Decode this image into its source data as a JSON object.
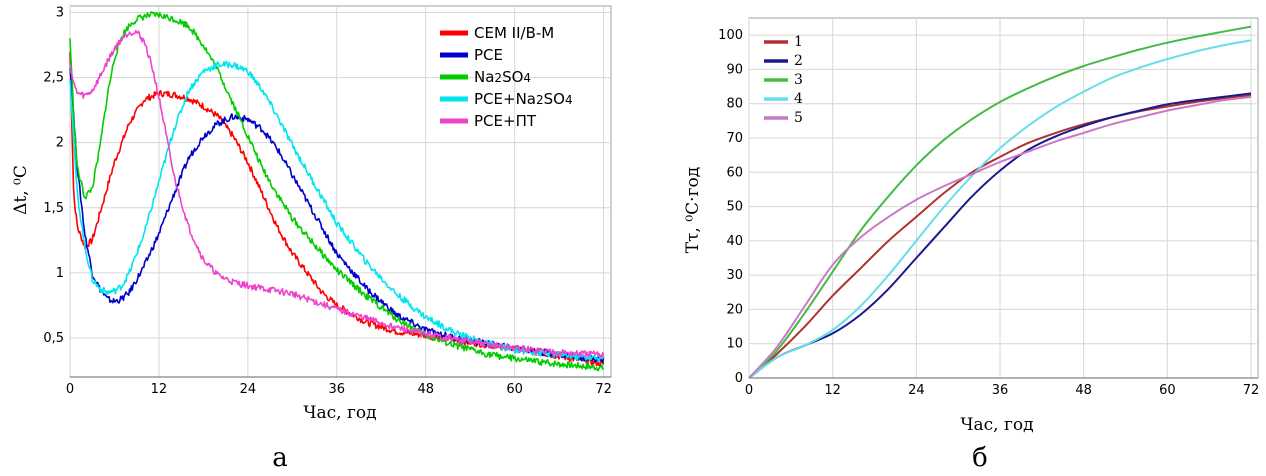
{
  "chart_data": [
    {
      "type": "line",
      "panel_label": "а",
      "xlabel": "Час, год",
      "ylabel": "Δt, ⁰С",
      "xlim": [
        0,
        73
      ],
      "ylim": [
        0.2,
        3.05
      ],
      "x_ticks": [
        0,
        12,
        24,
        36,
        48,
        60,
        72
      ],
      "y_ticks": [
        0.5,
        1,
        1.5,
        2,
        2.5,
        3
      ],
      "y_tick_labels": [
        "0,5",
        "1",
        "1,5",
        "2",
        "2,5",
        "3"
      ],
      "grid": true,
      "legend_position": "top-right",
      "series": [
        {
          "name": "CEM II/B-M",
          "color": "#ff0000",
          "x": [
            0,
            0.5,
            1,
            2,
            3,
            4,
            6,
            8,
            10,
            12,
            14,
            16,
            18,
            20,
            22,
            24,
            26,
            28,
            30,
            32,
            34,
            36,
            40,
            44,
            48,
            52,
            56,
            60,
            64,
            68,
            72
          ],
          "y": [
            2.7,
            1.6,
            1.35,
            1.2,
            1.25,
            1.45,
            1.85,
            2.15,
            2.33,
            2.38,
            2.37,
            2.34,
            2.28,
            2.2,
            2.05,
            1.85,
            1.6,
            1.35,
            1.15,
            1.0,
            0.85,
            0.75,
            0.62,
            0.55,
            0.52,
            0.48,
            0.45,
            0.42,
            0.38,
            0.34,
            0.3
          ]
        },
        {
          "name": "PCE",
          "color": "#0000cc",
          "x": [
            0,
            0.5,
            1,
            2,
            3,
            4,
            5,
            6,
            7,
            8,
            10,
            12,
            14,
            16,
            18,
            20,
            22,
            24,
            26,
            28,
            30,
            32,
            34,
            36,
            40,
            44,
            48,
            52,
            56,
            60,
            64,
            68,
            72
          ],
          "y": [
            2.6,
            2.2,
            1.8,
            1.3,
            1.0,
            0.88,
            0.8,
            0.78,
            0.8,
            0.85,
            1.05,
            1.3,
            1.6,
            1.88,
            2.05,
            2.15,
            2.2,
            2.18,
            2.1,
            1.95,
            1.75,
            1.55,
            1.35,
            1.15,
            0.88,
            0.68,
            0.56,
            0.5,
            0.46,
            0.42,
            0.39,
            0.36,
            0.33
          ]
        },
        {
          "name": "Na2SO4",
          "color": "#00cc00",
          "x": [
            0,
            0.5,
            1,
            2,
            3,
            4,
            5,
            6,
            7,
            8,
            9,
            10,
            11,
            12,
            14,
            16,
            18,
            20,
            22,
            24,
            26,
            28,
            30,
            32,
            34,
            36,
            40,
            44,
            48,
            52,
            56,
            60,
            64,
            68,
            72
          ],
          "y": [
            2.8,
            2.2,
            1.8,
            1.58,
            1.65,
            1.95,
            2.35,
            2.65,
            2.82,
            2.9,
            2.95,
            2.97,
            2.98,
            2.98,
            2.95,
            2.9,
            2.75,
            2.55,
            2.3,
            2.05,
            1.8,
            1.6,
            1.42,
            1.28,
            1.15,
            1.02,
            0.82,
            0.65,
            0.52,
            0.44,
            0.38,
            0.34,
            0.31,
            0.29,
            0.27
          ]
        },
        {
          "name": "PCE+Na2SO4",
          "color": "#00e5ee",
          "x": [
            0,
            0.5,
            1,
            2,
            3,
            4,
            5,
            6,
            7,
            8,
            10,
            12,
            14,
            16,
            18,
            20,
            22,
            24,
            26,
            28,
            30,
            32,
            34,
            36,
            40,
            44,
            48,
            52,
            56,
            60,
            64,
            68,
            72
          ],
          "y": [
            2.5,
            2.0,
            1.6,
            1.2,
            0.95,
            0.88,
            0.85,
            0.86,
            0.9,
            1.0,
            1.3,
            1.7,
            2.1,
            2.4,
            2.55,
            2.6,
            2.6,
            2.55,
            2.4,
            2.2,
            1.98,
            1.78,
            1.58,
            1.38,
            1.08,
            0.84,
            0.66,
            0.54,
            0.46,
            0.41,
            0.38,
            0.36,
            0.34
          ]
        },
        {
          "name": "PCE+ПТ",
          "color": "#ee44cc",
          "x": [
            0,
            0.5,
            1,
            2,
            3,
            4,
            5,
            6,
            7,
            8,
            9,
            10,
            11,
            12,
            13,
            14,
            16,
            18,
            20,
            22,
            24,
            26,
            28,
            30,
            32,
            36,
            40,
            44,
            48,
            52,
            56,
            60,
            64,
            68,
            72
          ],
          "y": [
            2.6,
            2.45,
            2.38,
            2.36,
            2.4,
            2.5,
            2.62,
            2.72,
            2.8,
            2.85,
            2.85,
            2.78,
            2.6,
            2.35,
            2.05,
            1.75,
            1.35,
            1.1,
            0.98,
            0.93,
            0.9,
            0.88,
            0.86,
            0.84,
            0.8,
            0.72,
            0.65,
            0.58,
            0.53,
            0.49,
            0.45,
            0.42,
            0.4,
            0.38,
            0.37
          ]
        }
      ]
    },
    {
      "type": "line",
      "panel_label": "б",
      "xlabel": "Час, год",
      "ylabel": "Тτ, ⁰С·год",
      "xlim": [
        0,
        73
      ],
      "ylim": [
        0,
        105
      ],
      "x_ticks": [
        0,
        12,
        24,
        36,
        48,
        60,
        72
      ],
      "y_ticks": [
        0,
        10,
        20,
        30,
        40,
        50,
        60,
        70,
        80,
        90,
        100
      ],
      "grid": true,
      "legend_position": "top-left",
      "series": [
        {
          "name": "1",
          "color": "#b03030",
          "x": [
            0,
            4,
            8,
            12,
            16,
            20,
            24,
            28,
            32,
            36,
            40,
            44,
            48,
            52,
            56,
            60,
            64,
            68,
            72
          ],
          "y": [
            0,
            7,
            15,
            24,
            32,
            40,
            47,
            54,
            60,
            64.5,
            68.5,
            71.5,
            74,
            76,
            77.8,
            79.2,
            80.5,
            81.6,
            82.5
          ]
        },
        {
          "name": "2",
          "color": "#1a1a8c",
          "x": [
            0,
            4,
            8,
            12,
            16,
            20,
            24,
            28,
            32,
            36,
            40,
            44,
            48,
            52,
            56,
            60,
            64,
            68,
            72
          ],
          "y": [
            0,
            6,
            9.5,
            13,
            18.5,
            26,
            35,
            44,
            53,
            60.5,
            66.5,
            70.5,
            73.5,
            76,
            78,
            79.8,
            81,
            82,
            83
          ]
        },
        {
          "name": "3",
          "color": "#44bb44",
          "x": [
            0,
            4,
            8,
            12,
            16,
            20,
            24,
            28,
            32,
            36,
            40,
            44,
            48,
            52,
            56,
            60,
            64,
            68,
            72
          ],
          "y": [
            0,
            8,
            19,
            31,
            43,
            53,
            62,
            69.5,
            75.5,
            80.5,
            84.5,
            88,
            91,
            93.5,
            95.8,
            97.8,
            99.5,
            101,
            102.5
          ]
        },
        {
          "name": "4",
          "color": "#66dde8",
          "x": [
            0,
            4,
            8,
            12,
            16,
            20,
            24,
            28,
            32,
            36,
            40,
            44,
            48,
            52,
            56,
            60,
            64,
            68,
            72
          ],
          "y": [
            0,
            6,
            9.5,
            14,
            21,
            30,
            40,
            50,
            59,
            67,
            73.5,
            79,
            83.5,
            87.5,
            90.5,
            93,
            95.2,
            97,
            98.5
          ]
        },
        {
          "name": "5",
          "color": "#c87ac8",
          "x": [
            0,
            4,
            8,
            12,
            16,
            20,
            24,
            28,
            32,
            36,
            40,
            44,
            48,
            52,
            56,
            60,
            64,
            68,
            72
          ],
          "y": [
            0,
            9,
            21,
            33,
            41,
            47,
            52,
            56,
            59.5,
            63,
            66,
            69,
            71.5,
            74,
            76,
            78,
            79.5,
            81,
            82
          ]
        }
      ]
    }
  ]
}
